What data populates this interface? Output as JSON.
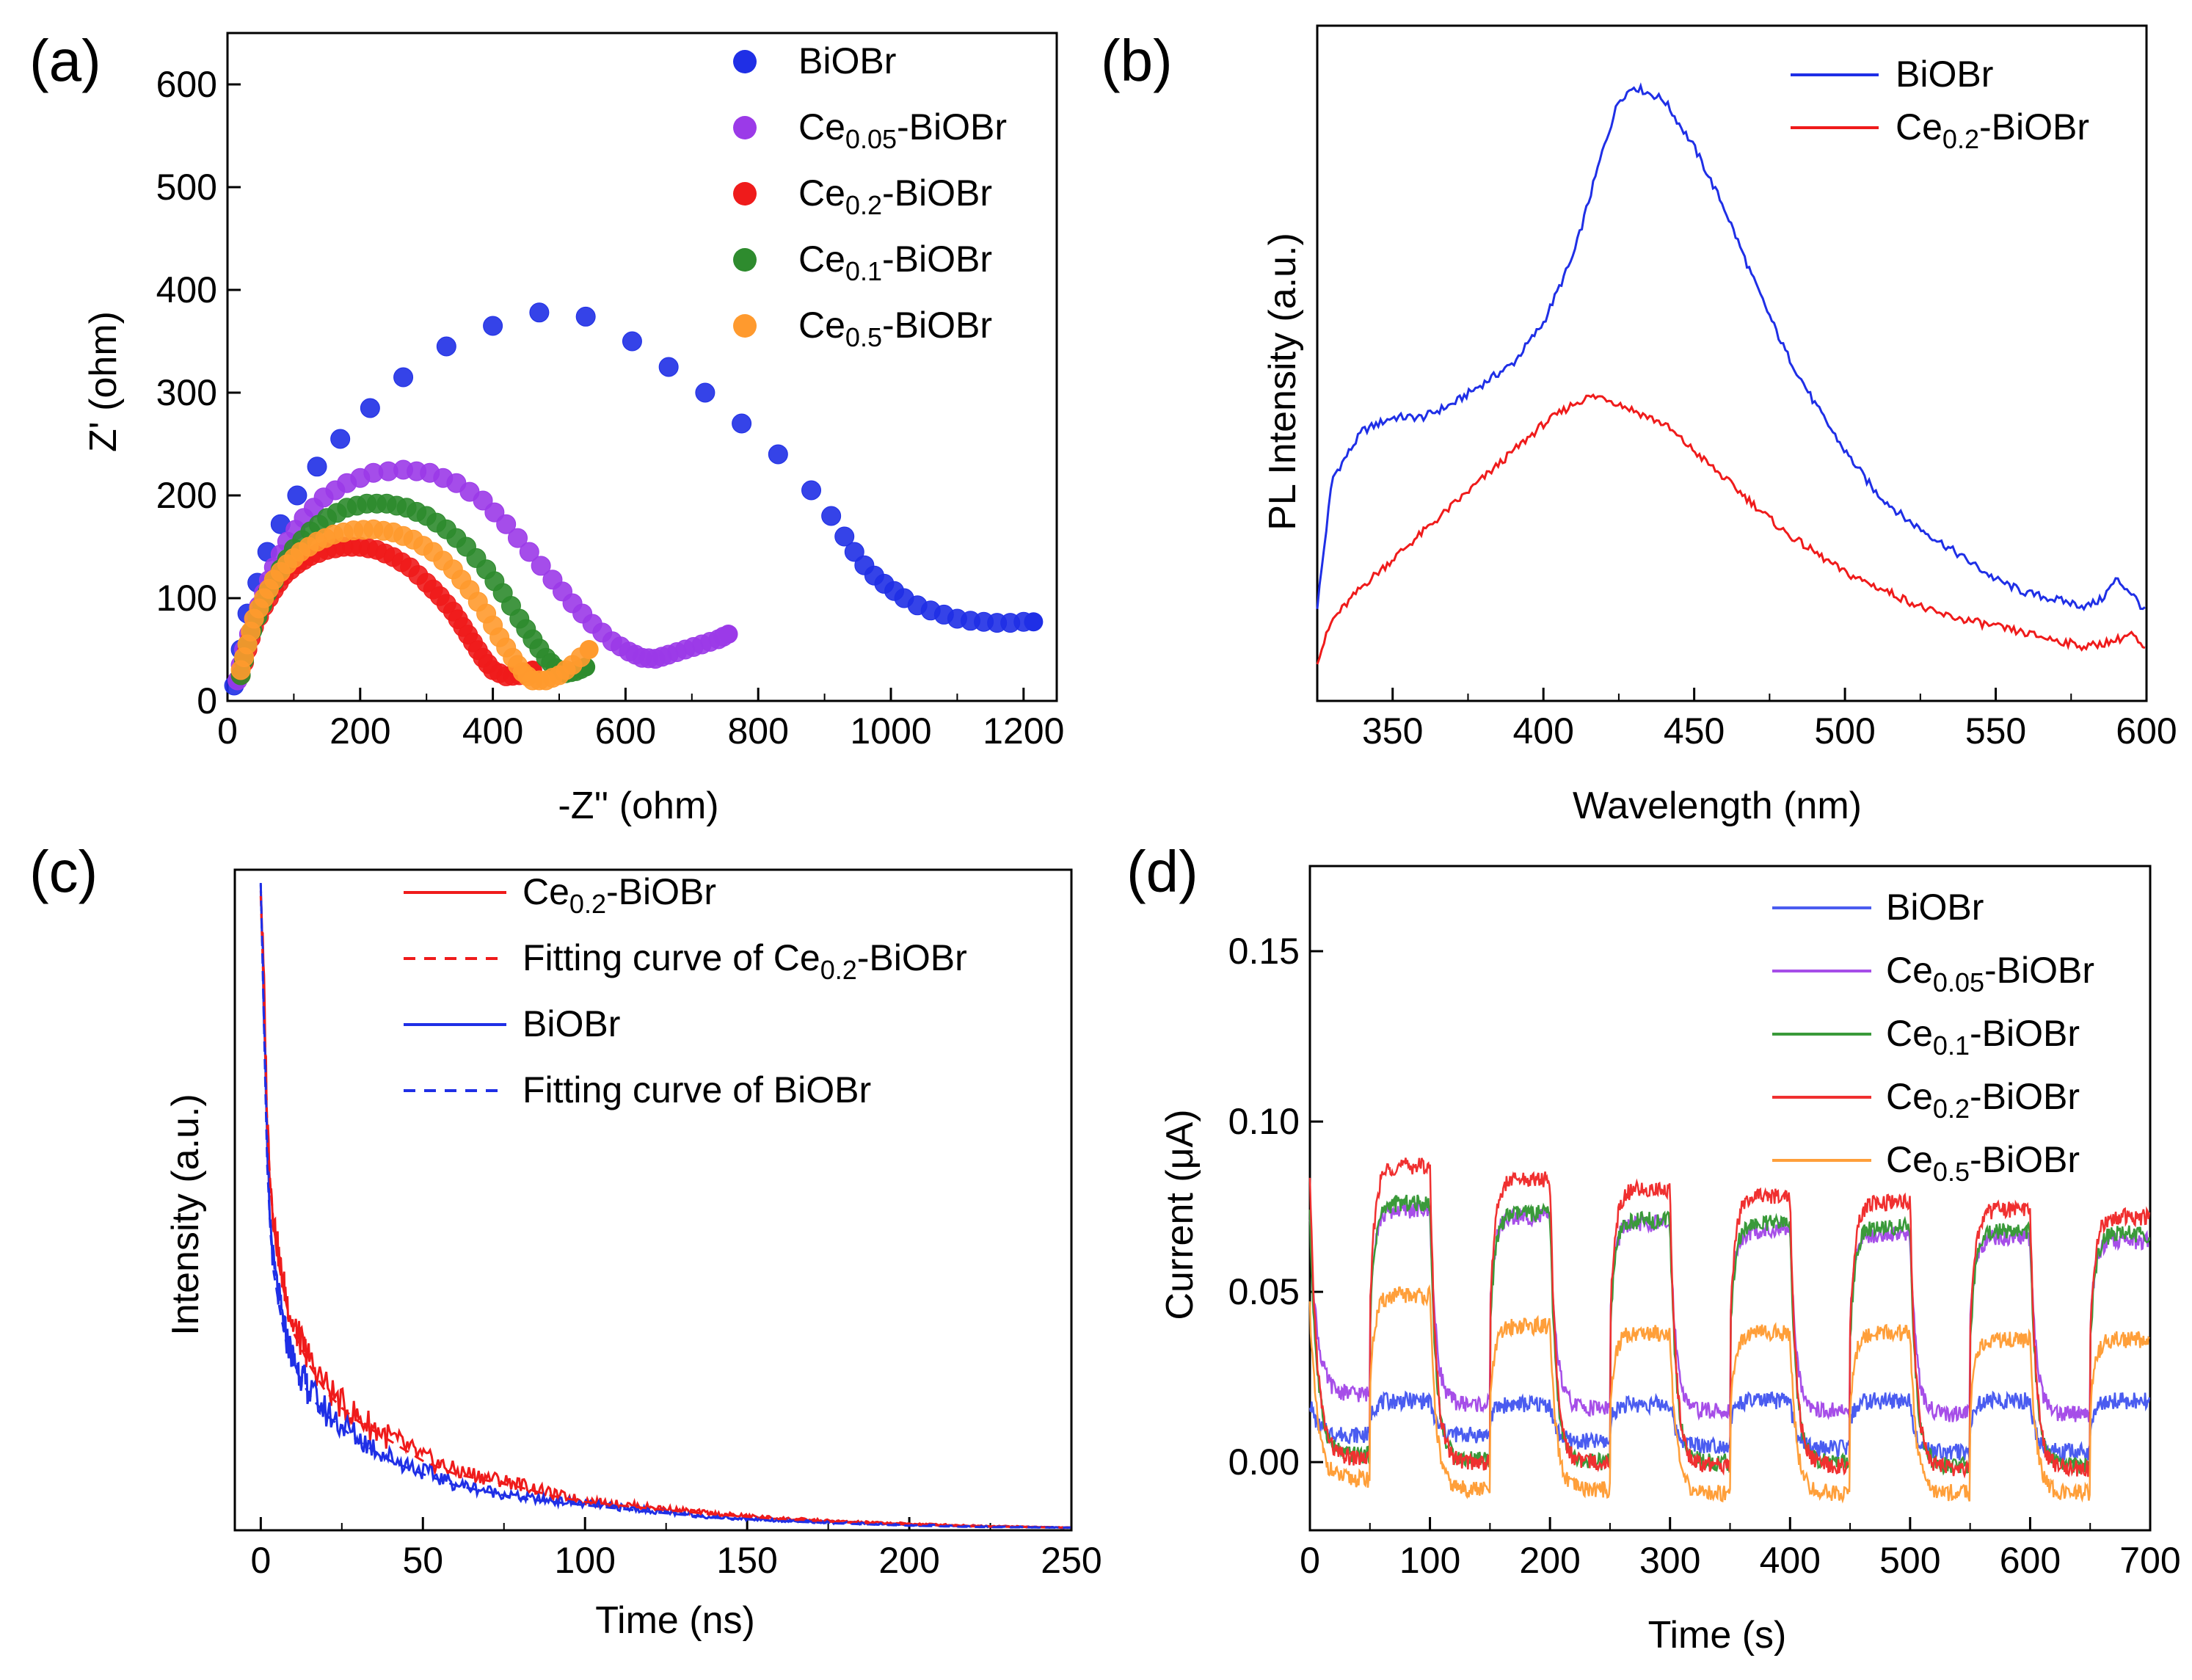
{
  "chart_data": [
    {
      "panel": "(a)",
      "type": "scatter",
      "xlabel": "-Z'' (ohm)",
      "ylabel": "Z' (ohm)",
      "xlim": [
        0,
        1250
      ],
      "ylim": [
        0,
        650
      ],
      "xticks": [
        "0",
        "200",
        "400",
        "600",
        "800",
        "1000",
        "1200"
      ],
      "yticks": [
        "0",
        "100",
        "200",
        "300",
        "400",
        "500",
        "600"
      ],
      "legend_position": "top-right",
      "series": [
        {
          "name": "BiOBr",
          "base": "BiOBr",
          "sub": "",
          "color": "#1f2fe6",
          "x": [
            10,
            20,
            30,
            45,
            60,
            80,
            105,
            135,
            170,
            215,
            265,
            330,
            400,
            470,
            540,
            610,
            665,
            720,
            775,
            830,
            880,
            910,
            930,
            945,
            960,
            975,
            990,
            1005,
            1020,
            1040,
            1060,
            1080,
            1100,
            1120,
            1140,
            1160,
            1180,
            1200,
            1215
          ],
          "y": [
            15,
            50,
            85,
            115,
            145,
            172,
            200,
            228,
            255,
            285,
            315,
            345,
            365,
            378,
            374,
            350,
            325,
            300,
            270,
            240,
            205,
            180,
            160,
            145,
            132,
            122,
            114,
            107,
            100,
            93,
            88,
            84,
            80,
            78,
            77,
            76,
            76,
            77,
            77
          ]
        },
        {
          "name": "Ce0.05-BiOBr",
          "base": "Ce",
          "sub": "0.05",
          "color": "#9b3ae8",
          "x": [
            15,
            25,
            40,
            55,
            70,
            90,
            115,
            145,
            180,
            220,
            265,
            305,
            345,
            385,
            420,
            455,
            490,
            520,
            550,
            580,
            605,
            625,
            645,
            665,
            690,
            715,
            740,
            755
          ],
          "y": [
            20,
            50,
            80,
            105,
            130,
            155,
            178,
            198,
            212,
            222,
            225,
            222,
            212,
            195,
            172,
            145,
            118,
            95,
            75,
            58,
            48,
            42,
            41,
            45,
            50,
            55,
            60,
            65
          ]
        },
        {
          "name": "Ce0.2-BiOBr",
          "base": "Ce",
          "sub": "0.2",
          "color": "#ef1b1b",
          "x": [
            20,
            30,
            40,
            55,
            70,
            85,
            105,
            125,
            150,
            175,
            200,
            225,
            250,
            275,
            300,
            320,
            340,
            355,
            370,
            385,
            400,
            420,
            440,
            460
          ],
          "y": [
            25,
            50,
            72,
            92,
            108,
            122,
            133,
            141,
            147,
            150,
            150,
            147,
            140,
            130,
            115,
            102,
            87,
            72,
            57,
            42,
            30,
            24,
            25,
            30
          ]
        },
        {
          "name": "Ce0.1-BiOBr",
          "base": "Ce",
          "sub": "0.1",
          "color": "#2e8b2e",
          "x": [
            20,
            30,
            45,
            60,
            80,
            100,
            125,
            150,
            180,
            210,
            240,
            270,
            300,
            330,
            360,
            390,
            415,
            440,
            460,
            480,
            495,
            510,
            525,
            540
          ],
          "y": [
            25,
            55,
            82,
            105,
            128,
            148,
            165,
            178,
            188,
            192,
            192,
            188,
            180,
            167,
            150,
            128,
            105,
            80,
            60,
            42,
            32,
            27,
            29,
            33
          ]
        },
        {
          "name": "Ce0.5-BiOBr",
          "base": "Ce",
          "sub": "0.5",
          "color": "#ff9a2e",
          "x": [
            20,
            30,
            40,
            55,
            70,
            90,
            110,
            135,
            160,
            190,
            220,
            250,
            280,
            310,
            340,
            365,
            390,
            410,
            430,
            445,
            460,
            480,
            500,
            520,
            545
          ],
          "y": [
            30,
            55,
            80,
            100,
            118,
            133,
            145,
            155,
            162,
            166,
            167,
            164,
            157,
            145,
            128,
            108,
            85,
            62,
            42,
            28,
            20,
            20,
            25,
            35,
            50
          ]
        }
      ]
    },
    {
      "panel": "(b)",
      "type": "line",
      "xlabel": "Wavelength (nm)",
      "ylabel": "PL Intensity (a.u.)",
      "xlim": [
        325,
        600
      ],
      "ylim": [
        0,
        1
      ],
      "xticks": [
        "350",
        "400",
        "450",
        "500",
        "550",
        "600"
      ],
      "legend_position": "top-right",
      "series": [
        {
          "name": "BiOBr",
          "base": "BiOBr",
          "sub": "",
          "color": "#1f2fe6",
          "x": [
            325,
            330,
            340,
            350,
            360,
            370,
            380,
            390,
            400,
            410,
            420,
            425,
            430,
            440,
            450,
            460,
            470,
            480,
            490,
            500,
            510,
            520,
            530,
            540,
            550,
            560,
            570,
            580,
            585,
            590,
            595,
            600
          ],
          "y": [
            0.14,
            0.33,
            0.4,
            0.42,
            0.42,
            0.44,
            0.47,
            0.5,
            0.56,
            0.66,
            0.82,
            0.89,
            0.91,
            0.89,
            0.82,
            0.73,
            0.62,
            0.52,
            0.44,
            0.37,
            0.31,
            0.27,
            0.24,
            0.21,
            0.18,
            0.16,
            0.15,
            0.14,
            0.15,
            0.18,
            0.16,
            0.13
          ]
        },
        {
          "name": "Ce0.2-BiOBr",
          "base": "Ce",
          "sub": "0.2",
          "color": "#ef1b1b",
          "x": [
            325,
            330,
            340,
            350,
            360,
            370,
            380,
            390,
            400,
            410,
            415,
            420,
            430,
            440,
            450,
            460,
            470,
            480,
            490,
            500,
            510,
            520,
            530,
            540,
            550,
            560,
            570,
            580,
            590,
            595,
            600
          ],
          "y": [
            0.06,
            0.12,
            0.17,
            0.21,
            0.25,
            0.29,
            0.33,
            0.37,
            0.41,
            0.44,
            0.45,
            0.45,
            0.43,
            0.41,
            0.37,
            0.33,
            0.29,
            0.25,
            0.22,
            0.19,
            0.17,
            0.15,
            0.13,
            0.12,
            0.11,
            0.1,
            0.09,
            0.08,
            0.09,
            0.1,
            0.07
          ]
        }
      ]
    },
    {
      "panel": "(c)",
      "type": "line",
      "xlabel": "Time (ns)",
      "ylabel": "Intensity (a.u.)",
      "xlim": [
        -8,
        250
      ],
      "ylim": [
        0,
        1
      ],
      "xticks": [
        "0",
        "50",
        "100",
        "150",
        "200",
        "250"
      ],
      "legend_position": "top-right",
      "series": [
        {
          "name": "Ce0.2-BiOBr",
          "base": "Ce",
          "sub": "0.2",
          "color": "#ef1b1b",
          "dash": false,
          "x": [
            0,
            1,
            2,
            3,
            4,
            6,
            8,
            10,
            15,
            20,
            25,
            30,
            40,
            50,
            60,
            70,
            80,
            90,
            100,
            120,
            140,
            160,
            180,
            200,
            220,
            250
          ],
          "y": [
            0.98,
            0.82,
            0.62,
            0.53,
            0.47,
            0.4,
            0.35,
            0.31,
            0.26,
            0.22,
            0.19,
            0.17,
            0.14,
            0.11,
            0.09,
            0.08,
            0.07,
            0.055,
            0.045,
            0.035,
            0.025,
            0.018,
            0.013,
            0.01,
            0.007,
            0.004
          ]
        },
        {
          "name": "Fitting curve of Ce0.2-BiOBr",
          "base": "Fitting curve of Ce",
          "sub": "0.2",
          "tail": "-BiOBr",
          "color": "#ef1b1b",
          "dash": true,
          "x": [
            0,
            1,
            2,
            3,
            4,
            6,
            8,
            10,
            15,
            20,
            25,
            30,
            40,
            50,
            60,
            70,
            80,
            90,
            100,
            120,
            140,
            160,
            180,
            200,
            220,
            250
          ],
          "y": [
            0.96,
            0.8,
            0.61,
            0.52,
            0.46,
            0.39,
            0.34,
            0.3,
            0.25,
            0.21,
            0.185,
            0.165,
            0.135,
            0.105,
            0.085,
            0.075,
            0.065,
            0.052,
            0.043,
            0.033,
            0.024,
            0.017,
            0.012,
            0.009,
            0.006,
            0.004
          ]
        },
        {
          "name": "BiOBr",
          "base": "BiOBr",
          "sub": "",
          "color": "#1f2fe6",
          "dash": false,
          "x": [
            0,
            1,
            2,
            3,
            4,
            6,
            8,
            10,
            15,
            20,
            25,
            30,
            40,
            50,
            60,
            70,
            80,
            90,
            100,
            120,
            140,
            160,
            180,
            200,
            220,
            250
          ],
          "y": [
            1.0,
            0.78,
            0.56,
            0.46,
            0.4,
            0.34,
            0.29,
            0.26,
            0.21,
            0.18,
            0.16,
            0.14,
            0.11,
            0.09,
            0.07,
            0.06,
            0.05,
            0.045,
            0.04,
            0.03,
            0.02,
            0.015,
            0.011,
            0.008,
            0.006,
            0.004
          ]
        },
        {
          "name": "Fitting curve of BiOBr",
          "base": "Fitting curve of BiOBr",
          "sub": "",
          "color": "#1f2fe6",
          "dash": true,
          "x": [
            0,
            1,
            2,
            3,
            4,
            6,
            8,
            10,
            15,
            20,
            25,
            30,
            40,
            50,
            60,
            70,
            80,
            90,
            100,
            120,
            140,
            160,
            180,
            200,
            220,
            250
          ],
          "y": [
            0.98,
            0.76,
            0.55,
            0.45,
            0.39,
            0.33,
            0.28,
            0.25,
            0.205,
            0.175,
            0.155,
            0.135,
            0.105,
            0.085,
            0.068,
            0.058,
            0.048,
            0.043,
            0.038,
            0.028,
            0.019,
            0.014,
            0.01,
            0.007,
            0.005,
            0.004
          ]
        }
      ]
    },
    {
      "panel": "(d)",
      "type": "line",
      "xlabel": "Time (s)",
      "ylabel": "Current (μA)",
      "xlim": [
        0,
        700
      ],
      "ylim": [
        -0.02,
        0.175
      ],
      "xticks": [
        "0",
        "100",
        "200",
        "300",
        "400",
        "500",
        "600",
        "700"
      ],
      "yticks": [
        "0.00",
        "0.05",
        "0.10",
        "0.15"
      ],
      "light_period_s": 50,
      "legend_position": "top-right",
      "series": [
        {
          "name": "BiOBr",
          "base": "BiOBr",
          "sub": "",
          "color": "#4a5cf0",
          "on": [
            0.018,
            0.017,
            0.017,
            0.018,
            0.018,
            0.018,
            0.018
          ],
          "off": [
            0.008,
            0.008,
            0.006,
            0.005,
            0.004,
            0.003,
            0.003
          ]
        },
        {
          "name": "Ce0.05-BiOBr",
          "base": "Ce",
          "sub": "0.05",
          "color": "#a64ee8",
          "on": [
            0.074,
            0.072,
            0.07,
            0.068,
            0.067,
            0.066,
            0.065
          ],
          "off": [
            0.02,
            0.017,
            0.016,
            0.015,
            0.015,
            0.014,
            0.014
          ]
        },
        {
          "name": "Ce0.1-BiOBr",
          "base": "Ce",
          "sub": "0.1",
          "color": "#3a9a3a",
          "on": [
            0.076,
            0.073,
            0.071,
            0.07,
            0.069,
            0.068,
            0.067
          ],
          "off": [
            0.002,
            0.001,
            0.0,
            0.0,
            0.0,
            -0.001,
            -0.001
          ]
        },
        {
          "name": "Ce0.2-BiOBr",
          "base": "Ce",
          "sub": "0.2",
          "color": "#f03030",
          "on": [
            0.087,
            0.083,
            0.08,
            0.078,
            0.076,
            0.074,
            0.072
          ],
          "off": [
            0.001,
            0.0,
            0.0,
            -0.001,
            -0.001,
            -0.002,
            -0.002
          ]
        },
        {
          "name": "Ce0.5-BiOBr",
          "base": "Ce",
          "sub": "0.5",
          "color": "#ff9f3a",
          "on": [
            0.049,
            0.04,
            0.038,
            0.038,
            0.038,
            0.036,
            0.036
          ],
          "off": [
            -0.005,
            -0.008,
            -0.008,
            -0.009,
            -0.009,
            -0.009,
            -0.009
          ]
        }
      ]
    }
  ]
}
